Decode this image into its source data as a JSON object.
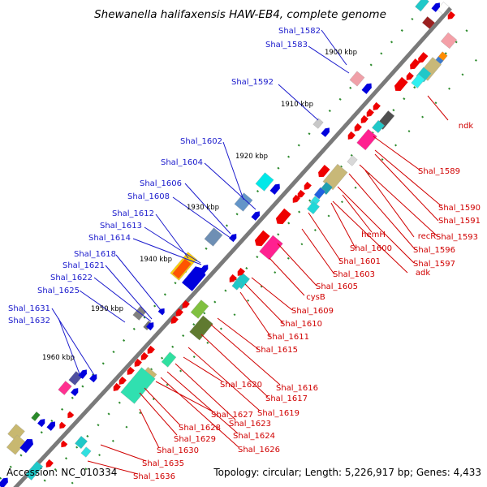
{
  "title": "Shewanella halifaxensis HAW-EB4, complete genome",
  "footer": {
    "accession": "Accession: NC_010334",
    "topology": "Topology: circular; Length: 5,226,917 bp; Genes: 4,433"
  },
  "scale_ticks": [
    "1900 kbp",
    "1910 kbp",
    "1920 kbp",
    "1930 kbp",
    "1940 kbp",
    "1950 kbp",
    "1960 kbp"
  ],
  "labels_outer": [
    "Shal_1582",
    "Shal_1583",
    "Shal_1592",
    "Shal_1602",
    "Shal_1604",
    "Shal_1606",
    "Shal_1608",
    "Shal_1612",
    "Shal_1613",
    "Shal_1614",
    "Shal_1618",
    "Shal_1621",
    "Shal_1622",
    "Shal_1625",
    "Shal_1631",
    "Shal_1632"
  ],
  "labels_inner": [
    "ndk",
    "Shal_1589",
    "Shal_1590",
    "Shal_1591",
    "recR",
    "Shal_1593",
    "hemH",
    "Shal_1596",
    "Shal_1597",
    "Shal_1600",
    "adk",
    "Shal_1601",
    "Shal_1603",
    "Shal_1605",
    "cysB",
    "Shal_1609",
    "Shal_1610",
    "Shal_1611",
    "Shal_1615",
    "Shal_1616",
    "Shal_1617",
    "Shal_1619",
    "Shal_1620",
    "Shal_1623",
    "Shal_1624",
    "Shal_1626",
    "Shal_1627",
    "Shal_1628",
    "Shal_1629",
    "Shal_1630",
    "Shal_1635",
    "Shal_1636"
  ],
  "colors": {
    "outer_label": "#1a1acc",
    "inner_label": "#d00000",
    "backbone": "#7a7a7a",
    "outer_gene": "#0000dd",
    "inner_gene": "#ee0000",
    "tick_dots": "#2e8b2e"
  }
}
